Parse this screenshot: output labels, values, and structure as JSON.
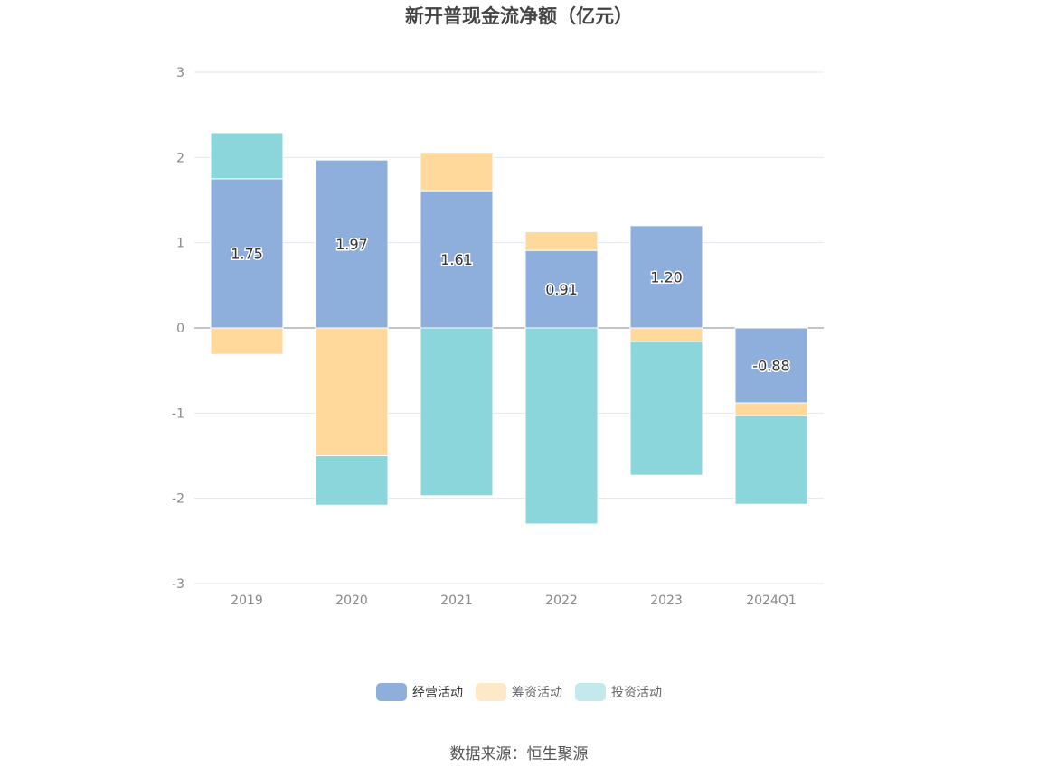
{
  "chart_data": {
    "type": "bar",
    "stacked": true,
    "title": "新开普现金流净额（亿元）",
    "categories": [
      "2019",
      "2020",
      "2021",
      "2022",
      "2023",
      "2024Q1"
    ],
    "series": [
      {
        "name": "经营活动",
        "color": "#8eaedb",
        "values": [
          1.75,
          1.97,
          1.61,
          0.91,
          1.2,
          -0.88
        ],
        "labels": [
          "1.75",
          "1.97",
          "1.61",
          "0.91",
          "1.20",
          "-0.88"
        ]
      },
      {
        "name": "筹资活动",
        "color": "#fed99b",
        "values": [
          -0.31,
          -1.5,
          0.45,
          0.22,
          -0.16,
          -0.15
        ]
      },
      {
        "name": "投资活动",
        "color": "#8ad6da",
        "values": [
          0.54,
          -0.58,
          -1.97,
          -2.3,
          -1.57,
          -1.04
        ]
      }
    ],
    "yticks": [
      "3",
      "2",
      "1",
      "0",
      "-1",
      "-2",
      "-3"
    ],
    "ylim": [
      -3,
      3
    ],
    "grid": true,
    "legend": "bottom"
  },
  "legend": {
    "items": [
      {
        "label": "经营活动",
        "color": "#8eaedb"
      },
      {
        "label": "筹资活动",
        "color": "#fde9c8"
      },
      {
        "label": "投资活动",
        "color": "#c4e9ec"
      }
    ]
  },
  "source": "数据来源：恒生聚源"
}
